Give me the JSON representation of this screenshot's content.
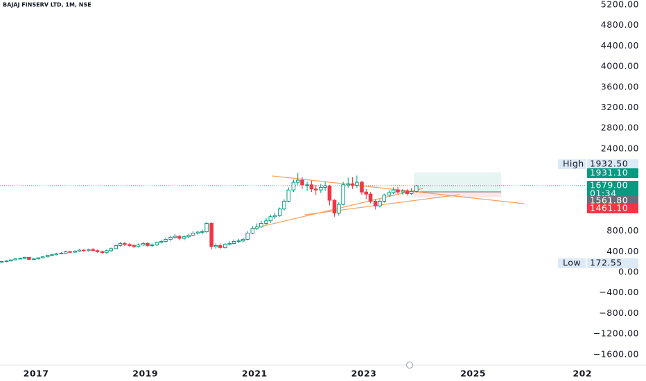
{
  "chart_data": {
    "type": "candlestick",
    "title": "BAJAJ FINSERV LTD, 1M, NSE",
    "up_color": "#089981",
    "down_color": "#f23645",
    "x": [
      2016.33,
      2016.42,
      2016.5,
      2016.58,
      2016.67,
      2016.75,
      2016.83,
      2016.92,
      2017,
      2017.08,
      2017.17,
      2017.25,
      2017.33,
      2017.42,
      2017.5,
      2017.58,
      2017.67,
      2017.75,
      2017.83,
      2017.92,
      2018,
      2018.08,
      2018.17,
      2018.25,
      2018.33,
      2018.42,
      2018.5,
      2018.58,
      2018.67,
      2018.75,
      2018.83,
      2018.92,
      2019,
      2019.08,
      2019.17,
      2019.25,
      2019.33,
      2019.42,
      2019.5,
      2019.58,
      2019.67,
      2019.75,
      2019.83,
      2019.92,
      2020,
      2020.08,
      2020.17,
      2020.25,
      2020.33,
      2020.42,
      2020.5,
      2020.58,
      2020.67,
      2020.75,
      2020.83,
      2020.92,
      2021,
      2021.08,
      2021.17,
      2021.25,
      2021.33,
      2021.42,
      2021.5,
      2021.58,
      2021.67,
      2021.75,
      2021.83,
      2021.92,
      2022,
      2022.08,
      2022.17,
      2022.25,
      2022.33,
      2022.42,
      2022.5,
      2022.58,
      2022.67,
      2022.75,
      2022.83,
      2022.92,
      2023,
      2023.08,
      2023.17,
      2023.25,
      2023.33,
      2023.42,
      2023.5,
      2023.58,
      2023.67,
      2023.75,
      2023.83,
      2023.92
    ],
    "open": [
      200,
      210,
      220,
      240,
      260,
      270,
      290,
      250,
      260,
      280,
      300,
      330,
      340,
      360,
      370,
      400,
      390,
      410,
      430,
      420,
      440,
      420,
      400,
      380,
      420,
      460,
      520,
      560,
      540,
      520,
      500,
      530,
      560,
      520,
      530,
      580,
      600,
      640,
      680,
      700,
      660,
      690,
      720,
      760,
      780,
      790,
      950,
      500,
      520,
      480,
      540,
      560,
      600,
      610,
      640,
      760,
      850,
      880,
      950,
      1000,
      1080,
      1100,
      1230,
      1380,
      1600,
      1750,
      1790,
      1700,
      1700,
      1620,
      1600,
      1650,
      1680,
      1400,
      1150,
      1320,
      1700,
      1720,
      1690,
      1750,
      1560,
      1520,
      1380,
      1290,
      1380,
      1500,
      1550,
      1600,
      1560,
      1580,
      1530,
      1570
    ],
    "high": [
      220,
      230,
      250,
      270,
      280,
      300,
      300,
      270,
      290,
      310,
      340,
      360,
      380,
      390,
      420,
      420,
      430,
      450,
      450,
      460,
      470,
      440,
      420,
      440,
      480,
      540,
      590,
      590,
      570,
      550,
      560,
      590,
      590,
      560,
      600,
      630,
      670,
      710,
      740,
      720,
      720,
      750,
      800,
      810,
      830,
      980,
      970,
      560,
      560,
      570,
      600,
      640,
      650,
      670,
      800,
      900,
      950,
      1000,
      1050,
      1120,
      1160,
      1260,
      1420,
      1650,
      1800,
      1930,
      1850,
      1760,
      1780,
      1700,
      1720,
      1760,
      1700,
      1420,
      1360,
      1760,
      1840,
      1850,
      1880,
      1780,
      1620,
      1560,
      1420,
      1420,
      1530,
      1600,
      1650,
      1660,
      1620,
      1620,
      1640,
      1700
    ],
    "low": [
      190,
      200,
      210,
      230,
      250,
      260,
      240,
      240,
      250,
      270,
      290,
      320,
      330,
      350,
      360,
      370,
      380,
      400,
      400,
      400,
      410,
      380,
      360,
      360,
      400,
      450,
      500,
      510,
      490,
      470,
      480,
      510,
      490,
      490,
      510,
      560,
      580,
      610,
      650,
      620,
      620,
      660,
      700,
      730,
      740,
      760,
      440,
      460,
      450,
      460,
      520,
      540,
      570,
      580,
      620,
      740,
      820,
      860,
      920,
      960,
      1040,
      1080,
      1200,
      1360,
      1560,
      1700,
      1620,
      1580,
      1560,
      1500,
      1540,
      1580,
      1300,
      1080,
      1100,
      1300,
      1640,
      1620,
      1640,
      1500,
      1420,
      1340,
      1220,
      1260,
      1350,
      1470,
      1520,
      1520,
      1500,
      1490,
      1500,
      1550
    ],
    "close": [
      210,
      220,
      240,
      260,
      270,
      290,
      250,
      260,
      280,
      300,
      330,
      340,
      360,
      370,
      400,
      390,
      410,
      430,
      420,
      440,
      420,
      400,
      380,
      420,
      460,
      520,
      560,
      540,
      520,
      500,
      530,
      560,
      520,
      530,
      580,
      600,
      640,
      680,
      700,
      660,
      690,
      720,
      760,
      780,
      790,
      950,
      500,
      520,
      480,
      540,
      560,
      600,
      610,
      640,
      760,
      850,
      880,
      950,
      1000,
      1080,
      1100,
      1230,
      1380,
      1600,
      1750,
      1790,
      1700,
      1700,
      1620,
      1600,
      1650,
      1680,
      1400,
      1150,
      1320,
      1700,
      1720,
      1690,
      1750,
      1560,
      1520,
      1380,
      1290,
      1380,
      1500,
      1550,
      1600,
      1560,
      1580,
      1530,
      1570,
      1679
    ],
    "xlim": [
      2016.34,
      2027.06
    ],
    "xticks": [
      2017,
      2019,
      2021,
      2023,
      2025,
      {
        "value": 2027,
        "label": "202"
      }
    ],
    "ylim": [
      -1805,
      5294
    ],
    "yticks": [
      {
        "value": 5200,
        "label": "5200.00"
      },
      {
        "value": 4800,
        "label": "4800.00"
      },
      {
        "value": 4400,
        "label": "4400.00"
      },
      {
        "value": 4000,
        "label": "4000.00"
      },
      {
        "value": 3600,
        "label": "3600.00"
      },
      {
        "value": 3200,
        "label": "3200.00"
      },
      {
        "value": 2800,
        "label": "2800.00"
      },
      {
        "value": 2400,
        "label": "2400.00"
      },
      {
        "value": 800,
        "label": "800.00"
      },
      {
        "value": 400,
        "label": "400.00"
      },
      {
        "value": 0,
        "label": "0.00"
      },
      {
        "value": -400,
        "label": "−400.00"
      },
      {
        "value": -800,
        "label": "−800.00"
      },
      {
        "value": -1200,
        "label": "−1200.00"
      },
      {
        "value": -1600,
        "label": "−1600.00"
      }
    ],
    "badges": [
      {
        "name": "High",
        "text": "1932.50"
      },
      {
        "text": "1931.10",
        "color": "#089981"
      },
      {
        "text": "1679.00",
        "sub": "01:34",
        "color": "#089981"
      },
      {
        "text": "1561.80",
        "color": "#6a6d78"
      },
      {
        "text": "1461.10",
        "color": "#f23645"
      },
      {
        "name": "Low",
        "text": "172.55"
      }
    ]
  }
}
